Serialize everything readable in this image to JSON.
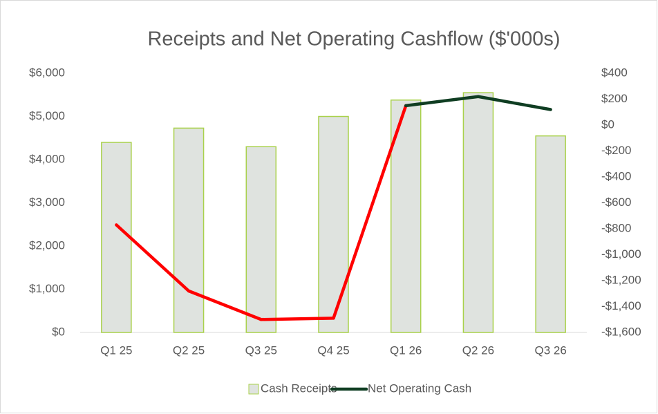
{
  "chart_data": {
    "type": "bar-line",
    "title": "Receipts and Net Operating Cashflow ($'000s)",
    "categories": [
      "Q1 25",
      "Q2 25",
      "Q3 25",
      "Q4 25",
      "Q1 26",
      "Q2 26",
      "Q3 26"
    ],
    "series": [
      {
        "name": "Cash Receipts",
        "type": "bar",
        "color": "#dfe3df",
        "edge_color": "#a9d14b",
        "values": [
          4400,
          4730,
          4300,
          5000,
          5380,
          5550,
          4550
        ]
      },
      {
        "name": "Net Operating Cash",
        "type": "line",
        "axis": "y2",
        "color": "#0f3d22",
        "negative_color": "#ff0000",
        "values": [
          -770,
          -1280,
          -1500,
          -1490,
          150,
          220,
          120
        ]
      }
    ],
    "ylim": [
      0,
      6000
    ],
    "yticks": [
      {
        "value": 0,
        "label": "$0"
      },
      {
        "value": 1000,
        "label": "$1,000"
      },
      {
        "value": 2000,
        "label": "$2,000"
      },
      {
        "value": 3000,
        "label": "$3,000"
      },
      {
        "value": 4000,
        "label": "$4,000"
      },
      {
        "value": 5000,
        "label": "$5,000"
      },
      {
        "value": 6000,
        "label": "$6,000"
      }
    ],
    "y2lim": [
      -1600,
      400
    ],
    "y2ticks": [
      {
        "value": -1600,
        "label": "-$1,600"
      },
      {
        "value": -1400,
        "label": "-$1,400"
      },
      {
        "value": -1200,
        "label": "-$1,200"
      },
      {
        "value": -1000,
        "label": "-$1,000"
      },
      {
        "value": -800,
        "label": "-$800"
      },
      {
        "value": -600,
        "label": "-$600"
      },
      {
        "value": -400,
        "label": "-$400"
      },
      {
        "value": -200,
        "label": "-$200"
      },
      {
        "value": 0,
        "label": "$0"
      },
      {
        "value": 200,
        "label": "$200"
      },
      {
        "value": 400,
        "label": "$400"
      }
    ],
    "legend": "bottom"
  }
}
